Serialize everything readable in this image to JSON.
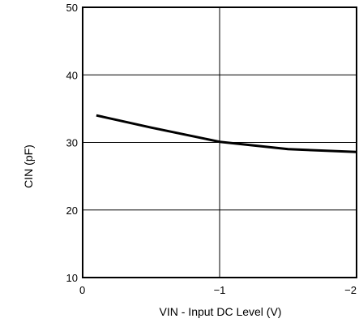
{
  "chart_data": {
    "type": "line",
    "title": "",
    "xlabel": "VIN - Input DC Level (V)",
    "ylabel": "CIN (pF)",
    "xlim": [
      0,
      -2
    ],
    "ylim": [
      10,
      50
    ],
    "x_ticks": [
      0,
      -1,
      -2
    ],
    "x_tick_labels": [
      "0",
      "−1",
      "−2"
    ],
    "y_ticks": [
      10,
      20,
      30,
      40,
      50
    ],
    "y_tick_labels": [
      "10",
      "20",
      "30",
      "40",
      "50"
    ],
    "grid": true,
    "series": [
      {
        "x": [
          -0.1,
          -0.5,
          -1.0,
          -1.5,
          -2.0
        ],
        "y": [
          34,
          32.2,
          30.1,
          29,
          28.6
        ]
      }
    ],
    "line_color": "#000000"
  }
}
